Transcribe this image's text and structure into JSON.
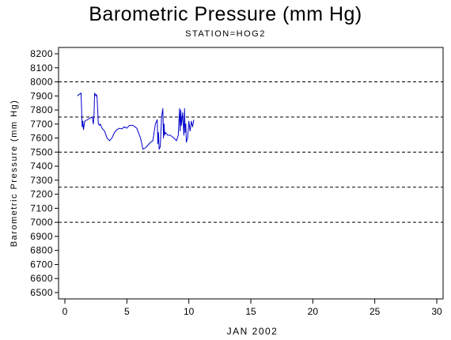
{
  "chart_data": {
    "type": "line",
    "title": "Barometric Pressure (mm Hg)",
    "subtitle": "STATION=HOG2",
    "xlabel": "JAN 2002",
    "ylabel": "Barometric Pressure (mm Hg)",
    "xlim": [
      0,
      30
    ],
    "ylim": [
      6500,
      8200
    ],
    "xticks": [
      0,
      5,
      10,
      15,
      20,
      25,
      30
    ],
    "yticks": [
      6500,
      6600,
      6700,
      6800,
      6900,
      7000,
      7100,
      7200,
      7300,
      7400,
      7500,
      7600,
      7700,
      7800,
      7900,
      8000,
      8100,
      8200
    ],
    "reference_lines": [
      8000,
      7750,
      7500,
      7250,
      7000
    ],
    "grid": false,
    "colors": {
      "series": "#0000cc",
      "axes": "#000000",
      "reference": "#000000"
    },
    "series": [
      {
        "x": [
          1.0,
          1.3,
          1.4,
          1.45,
          1.5,
          1.6,
          1.8,
          2.0,
          2.2,
          2.3,
          2.35,
          2.4,
          2.5,
          2.55,
          2.6,
          2.7,
          2.8,
          2.85,
          2.9,
          3.0,
          3.2,
          3.4,
          3.6,
          3.8,
          4.0,
          4.2,
          4.4,
          4.6,
          4.8,
          5.0,
          5.2,
          5.5,
          5.8,
          6.1,
          6.3,
          6.5,
          6.7,
          6.9,
          7.1,
          7.3,
          7.45,
          7.5,
          7.55,
          7.6,
          7.7,
          7.8,
          7.9,
          7.95,
          8.0,
          8.05,
          8.1,
          8.2,
          8.3,
          8.5,
          8.8,
          9.0,
          9.15,
          9.25,
          9.3,
          9.35,
          9.4,
          9.5,
          9.6,
          9.65,
          9.7,
          9.75,
          9.8,
          9.9,
          10.0,
          10.1,
          10.15,
          10.2,
          10.3,
          10.4
        ],
        "y": [
          7900,
          7920,
          7680,
          7720,
          7660,
          7720,
          7730,
          7740,
          7750,
          7700,
          7760,
          7920,
          7900,
          7910,
          7890,
          7700,
          7690,
          7700,
          7690,
          7670,
          7650,
          7600,
          7580,
          7600,
          7640,
          7660,
          7670,
          7665,
          7680,
          7670,
          7690,
          7690,
          7670,
          7600,
          7520,
          7530,
          7550,
          7570,
          7580,
          7700,
          7730,
          7560,
          7640,
          7520,
          7540,
          7750,
          7810,
          7600,
          7700,
          7620,
          7640,
          7630,
          7620,
          7620,
          7600,
          7580,
          7620,
          7810,
          7650,
          7800,
          7690,
          7780,
          7620,
          7810,
          7640,
          7700,
          7570,
          7600,
          7720,
          7650,
          7680,
          7720,
          7680,
          7730
        ]
      }
    ]
  }
}
